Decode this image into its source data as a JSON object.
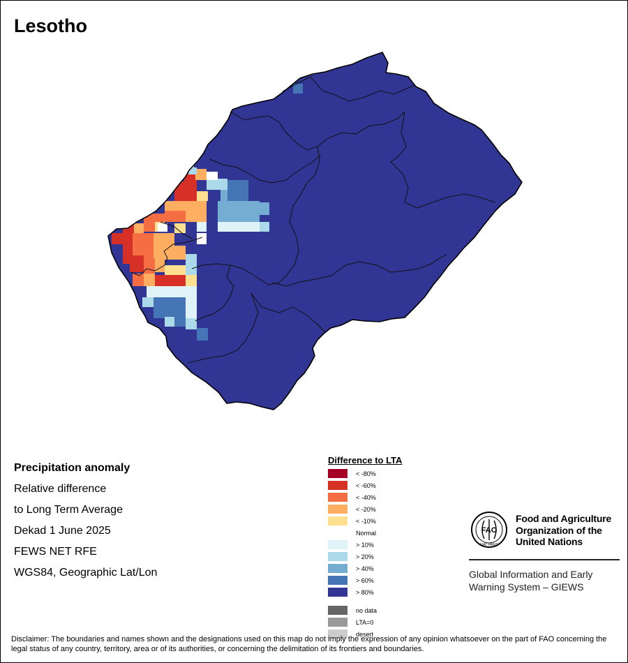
{
  "map": {
    "title": "Lesotho",
    "info": {
      "heading": "Precipitation anomaly",
      "line1": "Relative difference",
      "line2": "to Long Term Average",
      "period": "Dekad 1 June 2025",
      "source": "FEWS NET RFE",
      "projection": "WGS84, Geographic Lat/Lon"
    },
    "legend": {
      "title": "Difference to LTA",
      "classes": [
        {
          "label": "< -80%",
          "color": "#a50026"
        },
        {
          "label": "< -60%",
          "color": "#d73027"
        },
        {
          "label": "< -40%",
          "color": "#f46d43"
        },
        {
          "label": "< -20%",
          "color": "#fdae61"
        },
        {
          "label": "< -10%",
          "color": "#fee090"
        },
        {
          "label": "Normal",
          "color": "#ffffff"
        },
        {
          "label": "> 10%",
          "color": "#e0f3f8"
        },
        {
          "label": "> 20%",
          "color": "#abd9e9"
        },
        {
          "label": "> 40%",
          "color": "#74add1"
        },
        {
          "label": "> 60%",
          "color": "#4575b4"
        },
        {
          "label": "> 80%",
          "color": "#313695"
        }
      ],
      "extra": [
        {
          "label": "no data",
          "color": "#666666"
        },
        {
          "label": "LTA=0",
          "color": "#999999"
        },
        {
          "label": "desert",
          "color": "#cccccc"
        }
      ]
    },
    "org": {
      "name_line1": "Food and Agriculture",
      "name_line2": "Organization of the",
      "name_line3": "United Nations",
      "logo_text": "FAO",
      "motto": "FIAT PANIS",
      "system_line1": "Global Information and Early",
      "system_line2": "Warning System – GIEWS"
    },
    "disclaimer": "Disclaimer: The boundaries and names shown and the designations used on this map do not imply the expression of any opinion whatsoever on the part of FAO concerning the legal status of any country, territory, area or of its authorities, or concerning the delimitation of its frontiers and boundaries."
  }
}
